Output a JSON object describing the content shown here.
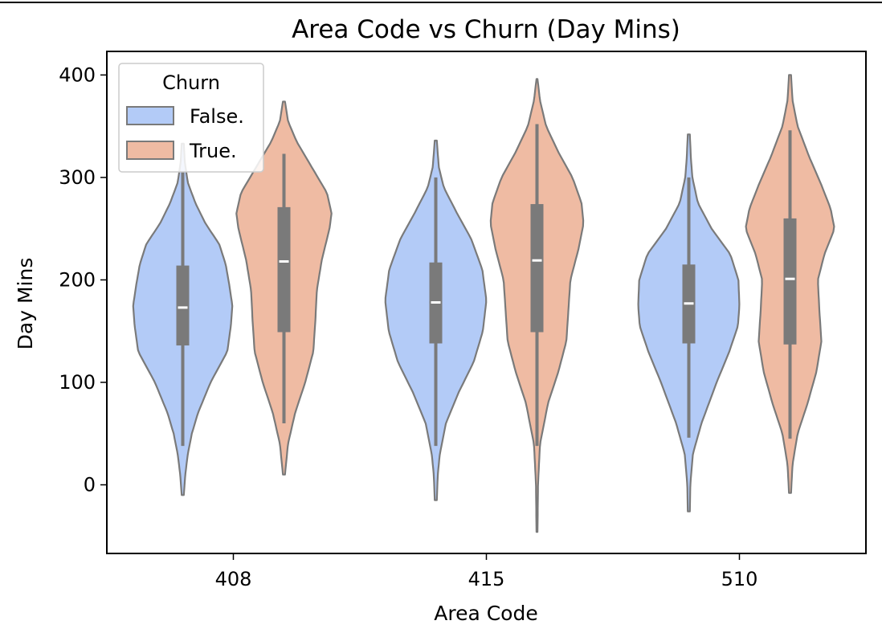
{
  "chart_data": {
    "type": "violin",
    "title": "Area Code vs Churn (Day Mins)",
    "xlabel": "Area Code",
    "ylabel": "Day Mins",
    "categories": [
      "408",
      "415",
      "510"
    ],
    "ylim": [
      -67,
      423
    ],
    "yticks": [
      0,
      100,
      200,
      300,
      400
    ],
    "legend": {
      "title": "Churn",
      "position": "top-left"
    },
    "colors": {
      "False.": "#b3cbf7",
      "True.": "#efbba3",
      "outline": "#7a7a7a",
      "box": "#7a7a7a",
      "median": "#ffffff"
    },
    "series": [
      {
        "name": "False.",
        "groups": [
          {
            "category": "408",
            "min": 38,
            "q1": 136,
            "median": 173,
            "q3": 214,
            "max": 305,
            "kde_min": -10,
            "kde_max": 333,
            "width": 0.5,
            "profile": [
              [
                -10,
                0.02
              ],
              [
                10,
                0.05
              ],
              [
                30,
                0.1
              ],
              [
                50,
                0.18
              ],
              [
                70,
                0.3
              ],
              [
                100,
                0.55
              ],
              [
                130,
                0.88
              ],
              [
                155,
                0.95
              ],
              [
                175,
                0.98
              ],
              [
                195,
                0.92
              ],
              [
                215,
                0.85
              ],
              [
                235,
                0.72
              ],
              [
                255,
                0.45
              ],
              [
                275,
                0.25
              ],
              [
                295,
                0.1
              ],
              [
                315,
                0.04
              ],
              [
                333,
                0.02
              ]
            ]
          },
          {
            "category": "415",
            "min": 38,
            "q1": 138,
            "median": 178,
            "q3": 217,
            "max": 300,
            "kde_min": -15,
            "kde_max": 336,
            "width": 0.5,
            "profile": [
              [
                -15,
                0.02
              ],
              [
                10,
                0.04
              ],
              [
                30,
                0.08
              ],
              [
                60,
                0.2
              ],
              [
                90,
                0.45
              ],
              [
                120,
                0.75
              ],
              [
                150,
                0.93
              ],
              [
                180,
                1.0
              ],
              [
                210,
                0.92
              ],
              [
                240,
                0.7
              ],
              [
                265,
                0.42
              ],
              [
                290,
                0.16
              ],
              [
                310,
                0.06
              ],
              [
                336,
                0.02
              ]
            ]
          },
          {
            "category": "510",
            "min": 46,
            "q1": 138,
            "median": 177,
            "q3": 215,
            "max": 300,
            "kde_min": -26,
            "kde_max": 342,
            "width": 0.5,
            "profile": [
              [
                -26,
                0.02
              ],
              [
                0,
                0.03
              ],
              [
                30,
                0.08
              ],
              [
                60,
                0.25
              ],
              [
                100,
                0.55
              ],
              [
                130,
                0.8
              ],
              [
                155,
                0.97
              ],
              [
                175,
                1.0
              ],
              [
                200,
                0.98
              ],
              [
                225,
                0.82
              ],
              [
                250,
                0.45
              ],
              [
                275,
                0.18
              ],
              [
                300,
                0.07
              ],
              [
                320,
                0.04
              ],
              [
                342,
                0.02
              ]
            ]
          }
        ]
      },
      {
        "name": "True.",
        "groups": [
          {
            "category": "408",
            "min": 60,
            "q1": 149,
            "median": 218,
            "q3": 271,
            "max": 323,
            "kde_min": 10,
            "kde_max": 374,
            "width": 0.5,
            "profile": [
              [
                10,
                0.02
              ],
              [
                40,
                0.08
              ],
              [
                70,
                0.22
              ],
              [
                100,
                0.42
              ],
              [
                130,
                0.58
              ],
              [
                160,
                0.62
              ],
              [
                190,
                0.65
              ],
              [
                220,
                0.75
              ],
              [
                250,
                0.9
              ],
              [
                265,
                0.94
              ],
              [
                285,
                0.85
              ],
              [
                310,
                0.55
              ],
              [
                335,
                0.25
              ],
              [
                355,
                0.08
              ],
              [
                374,
                0.02
              ]
            ]
          },
          {
            "category": "415",
            "min": 38,
            "q1": 149,
            "median": 219,
            "q3": 274,
            "max": 352,
            "kde_min": -46,
            "kde_max": 396,
            "width": 0.5,
            "profile": [
              [
                -46,
                0.01
              ],
              [
                0,
                0.02
              ],
              [
                40,
                0.06
              ],
              [
                80,
                0.22
              ],
              [
                110,
                0.42
              ],
              [
                140,
                0.58
              ],
              [
                170,
                0.62
              ],
              [
                200,
                0.66
              ],
              [
                230,
                0.82
              ],
              [
                255,
                0.92
              ],
              [
                275,
                0.88
              ],
              [
                300,
                0.7
              ],
              [
                325,
                0.42
              ],
              [
                350,
                0.18
              ],
              [
                375,
                0.06
              ],
              [
                396,
                0.01
              ]
            ]
          },
          {
            "category": "510",
            "min": 45,
            "q1": 137,
            "median": 201,
            "q3": 260,
            "max": 346,
            "kde_min": -8,
            "kde_max": 400,
            "width": 0.5,
            "profile": [
              [
                -8,
                0.02
              ],
              [
                20,
                0.05
              ],
              [
                50,
                0.15
              ],
              [
                80,
                0.35
              ],
              [
                110,
                0.52
              ],
              [
                140,
                0.62
              ],
              [
                170,
                0.58
              ],
              [
                200,
                0.55
              ],
              [
                225,
                0.68
              ],
              [
                250,
                0.88
              ],
              [
                270,
                0.8
              ],
              [
                295,
                0.6
              ],
              [
                320,
                0.38
              ],
              [
                350,
                0.15
              ],
              [
                375,
                0.05
              ],
              [
                400,
                0.02
              ]
            ]
          }
        ]
      }
    ]
  }
}
